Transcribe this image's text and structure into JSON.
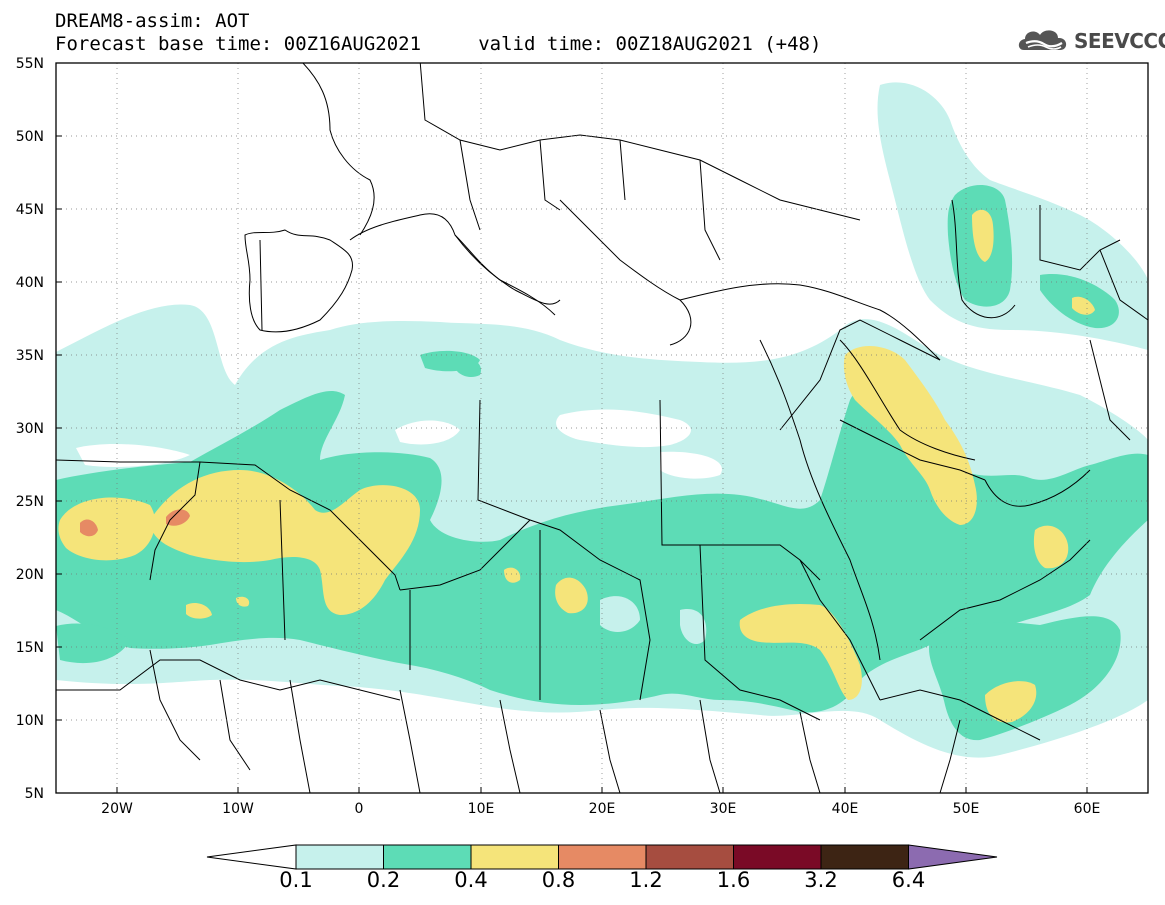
{
  "title": "DREAM8-assim: AOT",
  "subtitle": "Forecast base time: 00Z16AUG2021     valid time: 00Z18AUG2021 (+48)",
  "logo_text": "SEEVCCC",
  "lat_ticks": [
    "55N",
    "50N",
    "45N",
    "40N",
    "35N",
    "30N",
    "25N",
    "20N",
    "15N",
    "10N",
    "5N"
  ],
  "lon_ticks": [
    "20W",
    "10W",
    "0",
    "10E",
    "20E",
    "30E",
    "40E",
    "50E",
    "60E"
  ],
  "colorbar": {
    "levels": [
      "0.1",
      "0.2",
      "0.4",
      "0.8",
      "1.2",
      "1.6",
      "3.2",
      "6.4"
    ],
    "colors": [
      "#c6f1ec",
      "#5ddcb6",
      "#f5e47a",
      "#e68a64",
      "#a64d40",
      "#7a0a26",
      "#3d2414",
      "#8c6bb0"
    ],
    "under_color": "#ffffff"
  },
  "colors": {
    "aot_01": "#c6f1ec",
    "aot_02": "#5ddcb6",
    "aot_04": "#f5e47a",
    "aot_08": "#e68a64",
    "aot_12": "#a64d40"
  }
}
